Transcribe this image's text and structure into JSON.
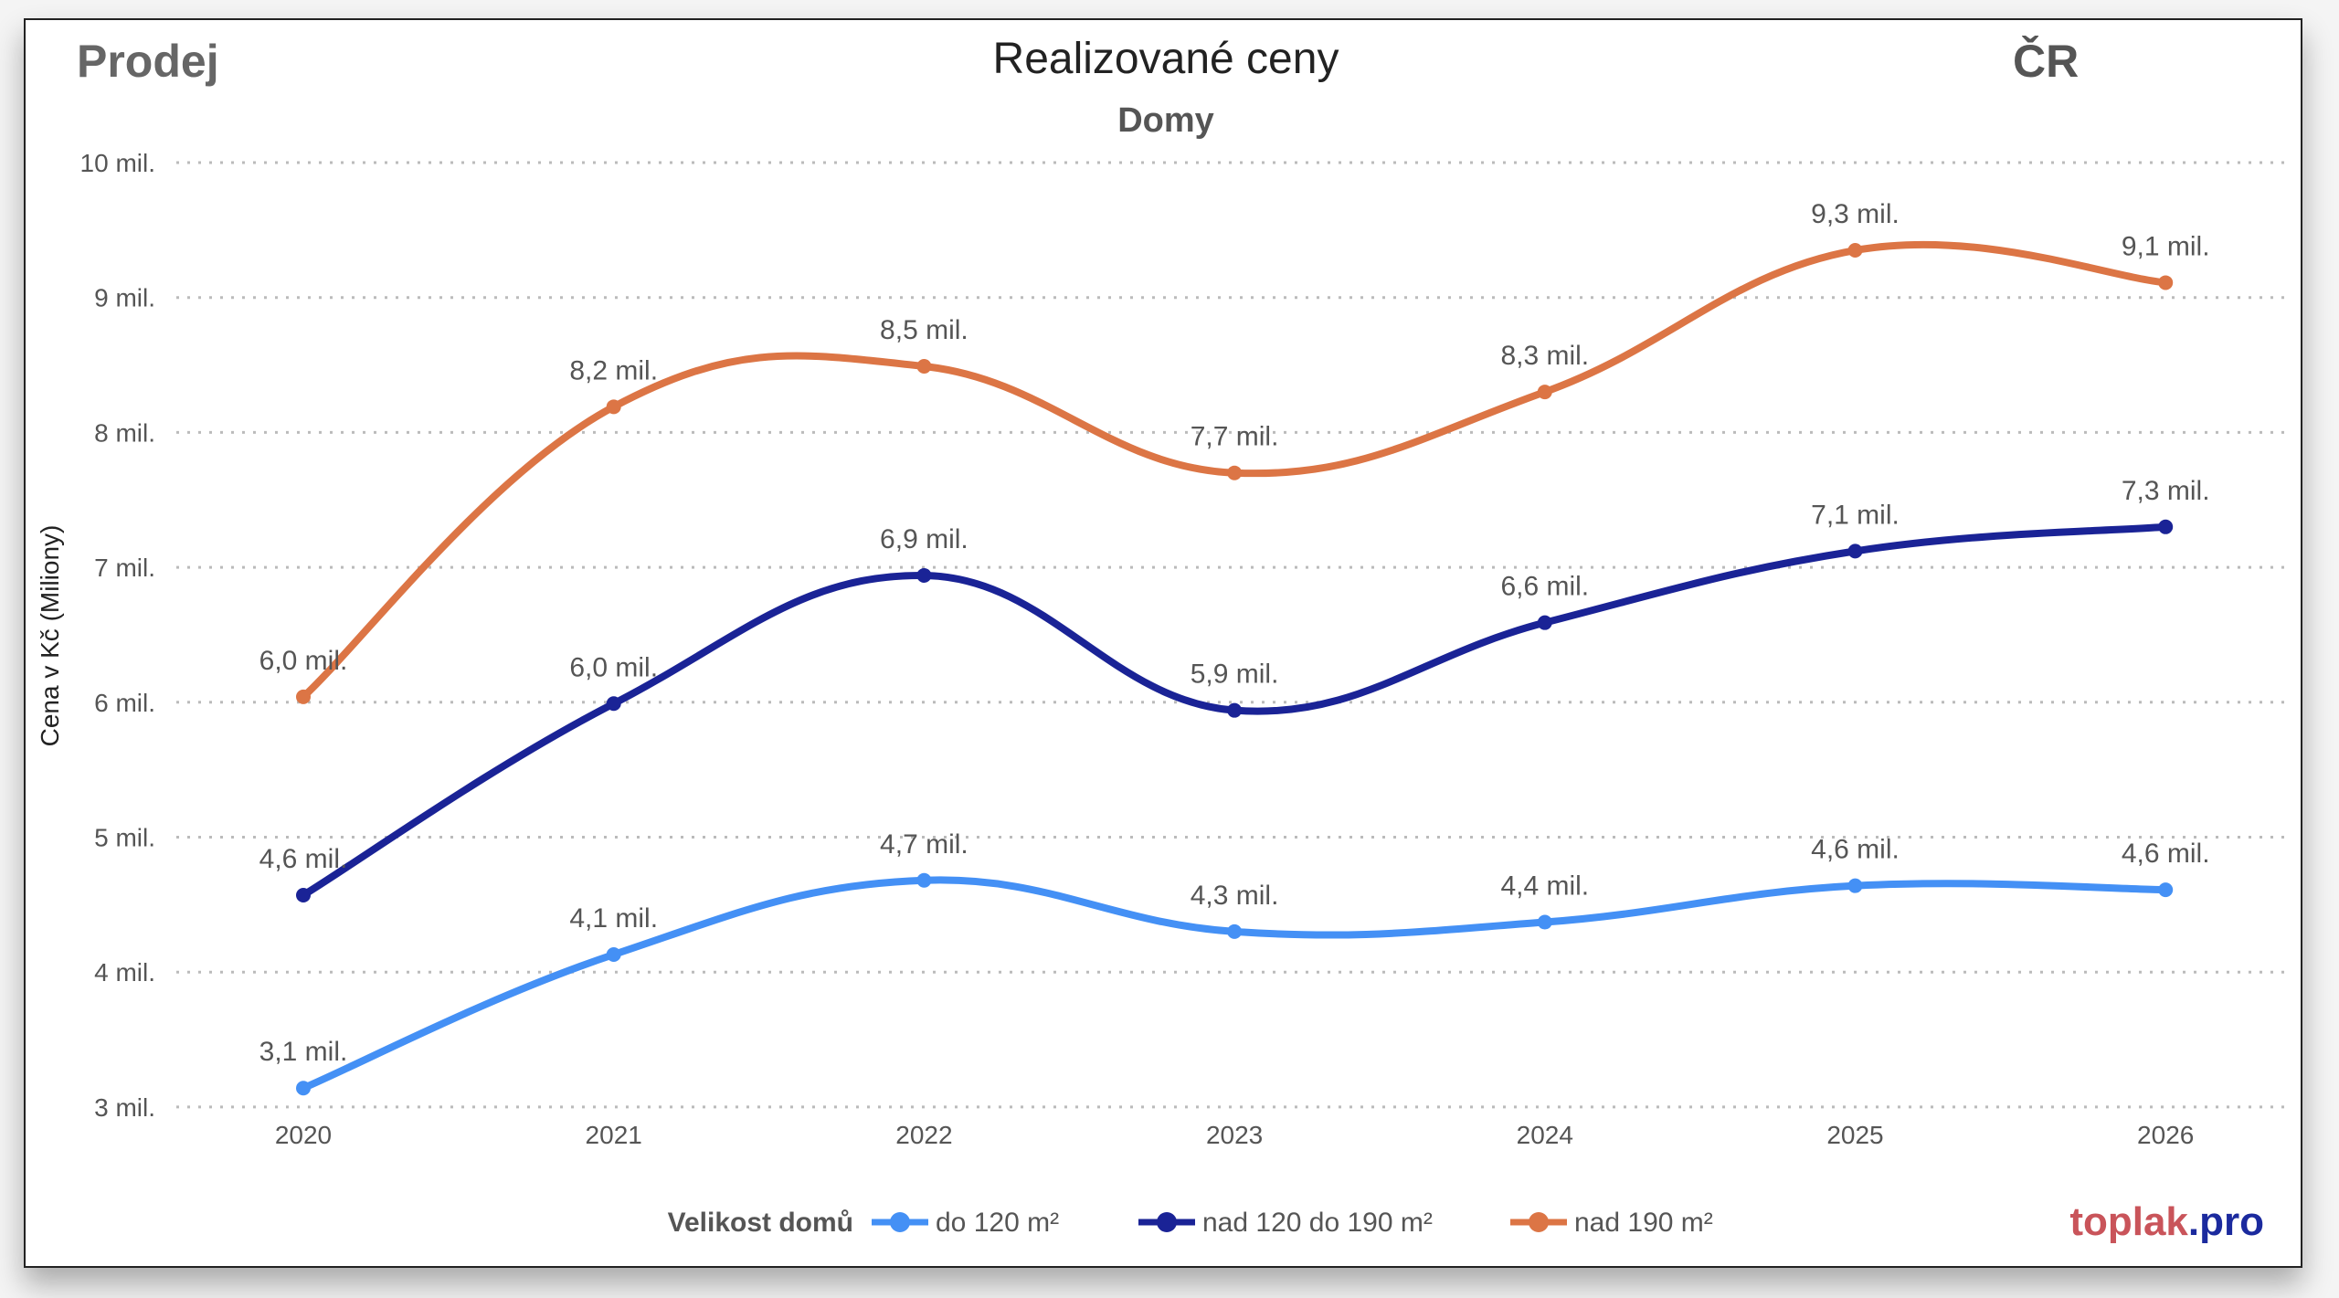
{
  "header": {
    "left": "Prodej",
    "right": "ČR"
  },
  "brand": {
    "part1": "toplak",
    "part2": ".pro",
    "color1": "#c9545a",
    "color2": "#1b2a9e"
  },
  "chart_data": {
    "type": "line",
    "title": "Realizované ceny",
    "subtitle": "Domy",
    "ylabel": "Cena v Kč (Miliony)",
    "xlabel": "",
    "x": [
      "2020",
      "2021",
      "2022",
      "2023",
      "2024",
      "2025",
      "2026"
    ],
    "ylim": [
      3,
      10
    ],
    "yticks": [
      {
        "value": 3,
        "label": "3 mil."
      },
      {
        "value": 4,
        "label": "4 mil."
      },
      {
        "value": 5,
        "label": "5 mil."
      },
      {
        "value": 6,
        "label": "6 mil."
      },
      {
        "value": 7,
        "label": "7 mil."
      },
      {
        "value": 8,
        "label": "8 mil."
      },
      {
        "value": 9,
        "label": "9 mil."
      },
      {
        "value": 10,
        "label": "10 mil."
      }
    ],
    "grid": true,
    "legend": {
      "title": "Velikost domů",
      "placement": "bottom"
    },
    "series": [
      {
        "name": "do 120 m²",
        "color": "#4490f5",
        "values": [
          3.14,
          4.13,
          4.68,
          4.3,
          4.37,
          4.64,
          4.61
        ],
        "labels": [
          "3,1 mil.",
          "4,1 mil.",
          "4,7 mil.",
          "4,3 mil.",
          "4,4 mil.",
          "4,6 mil.",
          "4,6 mil."
        ]
      },
      {
        "name": "nad 120 do 190 m²",
        "color": "#1a2396",
        "values": [
          4.57,
          5.99,
          6.94,
          5.94,
          6.59,
          7.12,
          7.3
        ],
        "labels": [
          "4,6 mil.",
          "6,0 mil.",
          "6,9 mil.",
          "5,9 mil.",
          "6,6 mil.",
          "7,1 mil.",
          "7,3 mil."
        ]
      },
      {
        "name": "nad 190 m²",
        "color": "#dc7545",
        "values": [
          6.04,
          8.19,
          8.49,
          7.7,
          8.3,
          9.35,
          9.11
        ],
        "labels": [
          "6,0 mil.",
          "8,2 mil.",
          "8,5 mil.",
          "7,7 mil.",
          "8,3 mil.",
          "9,3 mil.",
          "9,1 mil."
        ]
      }
    ]
  }
}
